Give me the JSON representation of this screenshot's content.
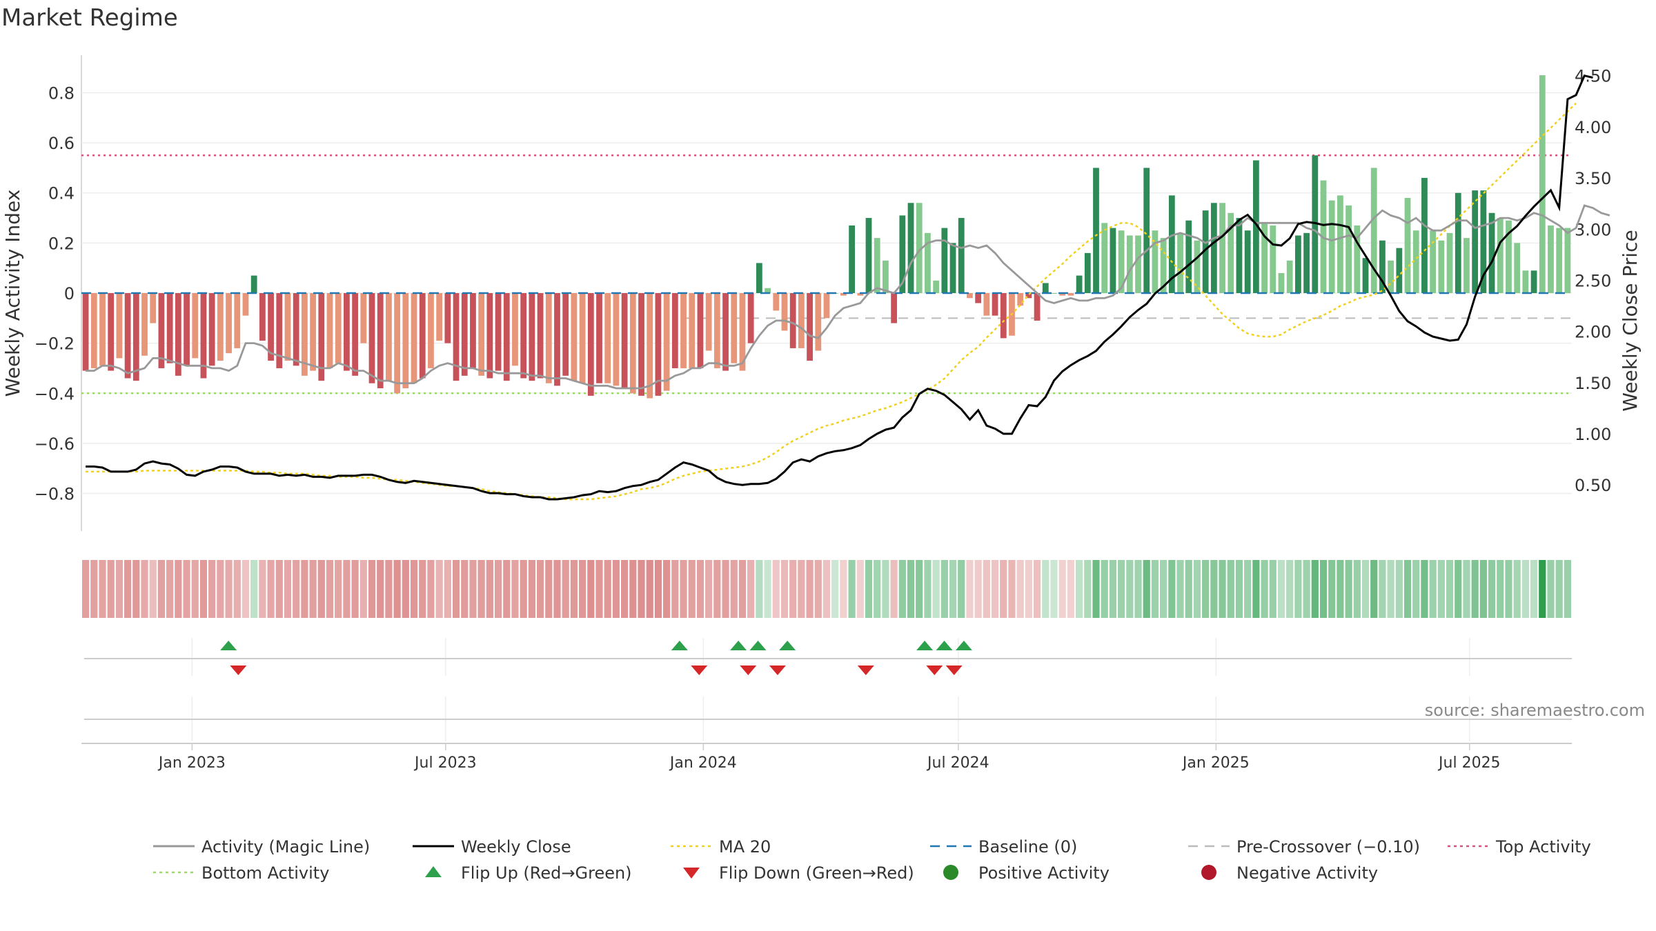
{
  "title": "Market Regime",
  "source": "source: sharemaestro.com",
  "colors": {
    "pos_strong": "#2e8b57",
    "pos_light": "#86c98f",
    "neg_strong": "#c8525a",
    "neg_light": "#e8967a",
    "magic": "#999999",
    "close": "#000000",
    "ma": "#f0d020",
    "baseline": "#1f77b4",
    "precross": "#bbbbbb",
    "top": "#d6537a",
    "bottom": "#9fd86a",
    "flip_up": "#2ca04b",
    "flip_down": "#d62728",
    "pos_dot": "#2a8a2a",
    "neg_dot": "#b2182b"
  },
  "chart_data": {
    "type": "bar",
    "title": "Market Regime",
    "ylabel": "Weekly Activity Index",
    "y2label": "Weekly Close Price",
    "ylim": [
      -0.95,
      0.95
    ],
    "y2lim": [
      0.05,
      4.7
    ],
    "yticks": [
      "0.8",
      "0.6",
      "0.4",
      "0.2",
      "0",
      "−0.2",
      "−0.4",
      "−0.6",
      "−0.8"
    ],
    "y2ticks": [
      "4.50",
      "4.00",
      "3.50",
      "3.00",
      "2.50",
      "2.00",
      "1.50",
      "1.00",
      "0.50"
    ],
    "xticks": [
      "Jan 2023",
      "Jul 2023",
      "Jan 2024",
      "Jul 2024",
      "Jan 2025",
      "Jul 2025"
    ],
    "x_start": "2022-10-14",
    "x_end": "2025-09-12",
    "grid": true,
    "levels": {
      "baseline": 0,
      "pre_crossover": -0.1,
      "top": 0.55,
      "bottom": -0.4
    },
    "activity": [
      -0.31,
      -0.3,
      -0.29,
      -0.31,
      -0.26,
      -0.34,
      -0.35,
      -0.25,
      -0.12,
      -0.3,
      -0.28,
      -0.33,
      -0.29,
      -0.26,
      -0.34,
      -0.29,
      -0.27,
      -0.24,
      -0.22,
      -0.09,
      0.07,
      -0.19,
      -0.27,
      -0.3,
      -0.27,
      -0.29,
      -0.33,
      -0.31,
      -0.35,
      -0.3,
      -0.28,
      -0.31,
      -0.33,
      -0.2,
      -0.36,
      -0.38,
      -0.35,
      -0.4,
      -0.38,
      -0.36,
      -0.34,
      -0.3,
      -0.19,
      -0.2,
      -0.35,
      -0.33,
      -0.3,
      -0.33,
      -0.34,
      -0.31,
      -0.35,
      -0.29,
      -0.34,
      -0.35,
      -0.34,
      -0.36,
      -0.37,
      -0.33,
      -0.35,
      -0.36,
      -0.41,
      -0.36,
      -0.36,
      -0.37,
      -0.38,
      -0.4,
      -0.41,
      -0.42,
      -0.41,
      -0.39,
      -0.3,
      -0.3,
      -0.3,
      -0.3,
      -0.23,
      -0.3,
      -0.31,
      -0.28,
      -0.31,
      -0.2,
      0.12,
      0.02,
      -0.07,
      -0.15,
      -0.22,
      -0.22,
      -0.27,
      -0.23,
      -0.1,
      0.0,
      -0.01,
      0.27,
      -0.01,
      0.3,
      0.22,
      0.13,
      -0.12,
      0.31,
      0.36,
      0.36,
      0.24,
      0.05,
      0.26,
      0.2,
      0.3,
      -0.02,
      -0.04,
      -0.09,
      -0.09,
      -0.18,
      -0.17,
      -0.05,
      -0.02,
      -0.11,
      0.04,
      0.0,
      -0.01,
      -0.01,
      0.07,
      0.16,
      0.5,
      0.28,
      0.26,
      0.25,
      0.23,
      0.23,
      0.5,
      0.25,
      0.22,
      0.39,
      0.24,
      0.29,
      0.21,
      0.33,
      0.36,
      0.36,
      0.32,
      0.3,
      0.25,
      0.53,
      0.28,
      0.27,
      0.08,
      0.13,
      0.23,
      0.24,
      0.55,
      0.45,
      0.37,
      0.39,
      0.35,
      0.27,
      0.14,
      0.5,
      0.21,
      0.13,
      0.18,
      0.38,
      0.25,
      0.46,
      0.25,
      0.21,
      0.24,
      0.4,
      0.22,
      0.41,
      0.41,
      0.32,
      0.3,
      0.29,
      0.2,
      0.09,
      0.09,
      0.87,
      0.27,
      0.26,
      0.26
    ],
    "activity_strong": [
      1,
      0,
      0,
      1,
      0,
      1,
      1,
      0,
      0,
      1,
      1,
      1,
      1,
      0,
      1,
      1,
      0,
      0,
      0,
      0,
      1,
      1,
      1,
      1,
      0,
      1,
      0,
      0,
      1,
      0,
      0,
      1,
      1,
      0,
      1,
      1,
      0,
      0,
      0,
      0,
      1,
      0,
      0,
      1,
      1,
      1,
      1,
      0,
      1,
      1,
      1,
      0,
      1,
      1,
      1,
      0,
      1,
      1,
      0,
      0,
      1,
      1,
      0,
      0,
      1,
      0,
      1,
      0,
      1,
      0,
      1,
      0,
      0,
      1,
      0,
      0,
      1,
      0,
      0,
      1,
      1,
      0,
      0,
      0,
      1,
      0,
      1,
      0,
      0,
      0,
      0,
      1,
      0,
      1,
      0,
      0,
      1,
      1,
      1,
      0,
      0,
      0,
      1,
      1,
      1,
      0,
      1,
      0,
      1,
      1,
      0,
      0,
      1,
      1,
      1,
      0,
      0,
      0,
      1,
      1,
      1,
      0,
      1,
      0,
      0,
      0,
      1,
      0,
      0,
      1,
      0,
      1,
      0,
      1,
      1,
      0,
      0,
      1,
      1,
      1,
      0,
      0,
      0,
      0,
      1,
      1,
      1,
      0,
      0,
      0,
      0,
      0,
      1,
      0,
      1,
      0,
      1,
      0,
      0,
      1,
      0,
      0,
      0,
      1,
      0,
      1,
      1,
      1,
      0,
      0,
      0,
      0,
      1,
      0,
      0,
      0
    ],
    "close": [
      0.68,
      0.68,
      0.67,
      0.63,
      0.63,
      0.63,
      0.65,
      0.71,
      0.73,
      0.71,
      0.7,
      0.66,
      0.6,
      0.59,
      0.63,
      0.65,
      0.68,
      0.68,
      0.67,
      0.63,
      0.61,
      0.61,
      0.61,
      0.59,
      0.6,
      0.59,
      0.6,
      0.58,
      0.58,
      0.57,
      0.59,
      0.59,
      0.59,
      0.6,
      0.6,
      0.58,
      0.55,
      0.53,
      0.52,
      0.54,
      0.53,
      0.52,
      0.51,
      0.5,
      0.49,
      0.48,
      0.47,
      0.44,
      0.42,
      0.42,
      0.41,
      0.41,
      0.39,
      0.38,
      0.38,
      0.36,
      0.36,
      0.37,
      0.38,
      0.4,
      0.41,
      0.44,
      0.43,
      0.44,
      0.47,
      0.49,
      0.5,
      0.53,
      0.55,
      0.61,
      0.67,
      0.72,
      0.7,
      0.67,
      0.64,
      0.57,
      0.53,
      0.51,
      0.5,
      0.51,
      0.51,
      0.52,
      0.56,
      0.63,
      0.72,
      0.75,
      0.73,
      0.78,
      0.81,
      0.83,
      0.84,
      0.86,
      0.89,
      0.95,
      1.0,
      1.04,
      1.06,
      1.16,
      1.23,
      1.39,
      1.44,
      1.42,
      1.38,
      1.31,
      1.24,
      1.14,
      1.23,
      1.08,
      1.05,
      1.0,
      1.0,
      1.15,
      1.28,
      1.27,
      1.36,
      1.52,
      1.61,
      1.67,
      1.72,
      1.76,
      1.81,
      1.9,
      1.97,
      2.05,
      2.14,
      2.21,
      2.27,
      2.37,
      2.44,
      2.52,
      2.58,
      2.65,
      2.72,
      2.8,
      2.87,
      2.93,
      3.01,
      3.09,
      3.14,
      3.05,
      2.93,
      2.85,
      2.84,
      2.91,
      3.05,
      3.07,
      3.06,
      3.04,
      3.05,
      3.04,
      3.02,
      2.87,
      2.74,
      2.61,
      2.49,
      2.35,
      2.2,
      2.1,
      2.05,
      1.99,
      1.95,
      1.93,
      1.91,
      1.92,
      2.07,
      2.34,
      2.55,
      2.68,
      2.87,
      2.96,
      3.03,
      3.13,
      3.22,
      3.3,
      3.38,
      3.21,
      4.27,
      4.31,
      4.5,
      4.48
    ],
    "ma20": [
      0.63,
      0.63,
      0.63,
      0.63,
      0.63,
      0.63,
      0.63,
      0.64,
      0.64,
      0.64,
      0.64,
      0.64,
      0.64,
      0.64,
      0.64,
      0.64,
      0.64,
      0.64,
      0.64,
      0.64,
      0.63,
      0.63,
      0.62,
      0.62,
      0.61,
      0.61,
      0.61,
      0.6,
      0.59,
      0.59,
      0.58,
      0.58,
      0.58,
      0.57,
      0.57,
      0.56,
      0.55,
      0.55,
      0.54,
      0.53,
      0.52,
      0.51,
      0.5,
      0.49,
      0.49,
      0.48,
      0.47,
      0.46,
      0.44,
      0.43,
      0.42,
      0.41,
      0.4,
      0.39,
      0.38,
      0.38,
      0.37,
      0.36,
      0.36,
      0.36,
      0.36,
      0.37,
      0.38,
      0.39,
      0.41,
      0.43,
      0.46,
      0.47,
      0.49,
      0.52,
      0.56,
      0.59,
      0.61,
      0.63,
      0.64,
      0.65,
      0.66,
      0.67,
      0.68,
      0.7,
      0.73,
      0.77,
      0.82,
      0.88,
      0.93,
      0.97,
      1.01,
      1.05,
      1.08,
      1.1,
      1.13,
      1.15,
      1.17,
      1.2,
      1.23,
      1.25,
      1.28,
      1.31,
      1.35,
      1.39,
      1.43,
      1.48,
      1.54,
      1.63,
      1.72,
      1.79,
      1.85,
      1.94,
      2.02,
      2.1,
      2.17,
      2.26,
      2.36,
      2.44,
      2.52,
      2.59,
      2.66,
      2.74,
      2.81,
      2.88,
      2.94,
      2.99,
      3.03,
      3.06,
      3.06,
      3.02,
      2.95,
      2.87,
      2.78,
      2.68,
      2.59,
      2.52,
      2.44,
      2.35,
      2.26,
      2.17,
      2.1,
      2.03,
      1.98,
      1.96,
      1.95,
      1.95,
      1.97,
      2.02,
      2.06,
      2.1,
      2.13,
      2.16,
      2.2,
      2.25,
      2.28,
      2.32,
      2.34,
      2.36,
      2.4,
      2.47,
      2.55,
      2.63,
      2.71,
      2.79,
      2.87,
      2.95,
      3.03,
      3.11,
      3.19,
      3.27,
      3.35,
      3.43,
      3.51,
      3.59,
      3.67,
      3.75,
      3.83,
      3.91,
      3.99,
      4.07,
      4.15,
      4.23
    ],
    "magic": [
      -0.31,
      -0.31,
      -0.29,
      -0.29,
      -0.3,
      -0.32,
      -0.31,
      -0.3,
      -0.26,
      -0.26,
      -0.27,
      -0.28,
      -0.29,
      -0.29,
      -0.29,
      -0.3,
      -0.3,
      -0.31,
      -0.29,
      -0.2,
      -0.2,
      -0.21,
      -0.24,
      -0.25,
      -0.26,
      -0.27,
      -0.28,
      -0.29,
      -0.3,
      -0.3,
      -0.28,
      -0.29,
      -0.31,
      -0.31,
      -0.33,
      -0.35,
      -0.35,
      -0.36,
      -0.36,
      -0.36,
      -0.34,
      -0.31,
      -0.29,
      -0.28,
      -0.29,
      -0.3,
      -0.3,
      -0.31,
      -0.31,
      -0.32,
      -0.32,
      -0.32,
      -0.32,
      -0.33,
      -0.33,
      -0.34,
      -0.34,
      -0.34,
      -0.35,
      -0.36,
      -0.37,
      -0.37,
      -0.37,
      -0.38,
      -0.38,
      -0.38,
      -0.38,
      -0.37,
      -0.35,
      -0.35,
      -0.33,
      -0.32,
      -0.3,
      -0.3,
      -0.28,
      -0.28,
      -0.29,
      -0.29,
      -0.28,
      -0.22,
      -0.17,
      -0.13,
      -0.11,
      -0.11,
      -0.12,
      -0.14,
      -0.17,
      -0.18,
      -0.14,
      -0.09,
      -0.06,
      -0.05,
      -0.04,
      0.0,
      0.02,
      0.01,
      0.0,
      0.04,
      0.12,
      0.17,
      0.2,
      0.21,
      0.21,
      0.19,
      0.18,
      0.19,
      0.18,
      0.19,
      0.16,
      0.12,
      0.09,
      0.06,
      0.03,
      0.0,
      -0.03,
      -0.04,
      -0.03,
      -0.02,
      -0.03,
      -0.03,
      -0.02,
      -0.02,
      -0.01,
      0.02,
      0.09,
      0.14,
      0.17,
      0.2,
      0.21,
      0.23,
      0.24,
      0.23,
      0.22,
      0.2,
      0.22,
      0.23,
      0.27,
      0.27,
      0.3,
      0.28,
      0.28,
      0.28,
      0.28,
      0.28,
      0.28,
      0.26,
      0.25,
      0.22,
      0.21,
      0.22,
      0.23,
      0.22,
      0.26,
      0.3,
      0.33,
      0.31,
      0.3,
      0.28,
      0.3,
      0.27,
      0.25,
      0.25,
      0.27,
      0.29,
      0.29,
      0.26,
      0.27,
      0.28,
      0.3,
      0.3,
      0.29,
      0.3,
      0.32,
      0.31,
      0.29,
      0.27,
      0.24,
      0.26,
      0.35,
      0.34,
      0.32,
      0.31
    ],
    "flip_up": [
      "2023-01-27",
      "2023-12-15",
      "2024-01-26",
      "2024-02-09",
      "2024-03-01",
      "2024-06-07",
      "2024-06-21",
      "2024-07-05"
    ],
    "flip_down": [
      "2023-02-03",
      "2023-12-29",
      "2024-02-02",
      "2024-02-23",
      "2024-04-26",
      "2024-06-14",
      "2024-06-28"
    ]
  },
  "legend": [
    {
      "label": "Activity (Magic Line)",
      "icon": "solid-line",
      "color": "#999999"
    },
    {
      "label": "Weekly Close",
      "icon": "solid-line",
      "color": "#000000"
    },
    {
      "label": "MA 20",
      "icon": "dotted-line",
      "color": "#f0d020"
    },
    {
      "label": "Baseline (0)",
      "icon": "dashed-line",
      "color": "#1f77b4"
    },
    {
      "label": "Pre-Crossover (−0.10)",
      "icon": "dashed-line",
      "color": "#bbbbbb"
    },
    {
      "label": "Top Activity",
      "icon": "dotted-line",
      "color": "#d6537a"
    },
    {
      "label": "Bottom Activity",
      "icon": "dotted-line",
      "color": "#9fd86a"
    },
    {
      "label": "Flip Up (Red→Green)",
      "icon": "triangle-up",
      "color": "#2ca04b"
    },
    {
      "label": "Flip Down (Green→Red)",
      "icon": "triangle-down",
      "color": "#d62728"
    },
    {
      "label": "Positive Activity",
      "icon": "dot",
      "color": "#2a8a2a"
    },
    {
      "label": "Negative Activity",
      "icon": "dot",
      "color": "#b2182b"
    }
  ]
}
